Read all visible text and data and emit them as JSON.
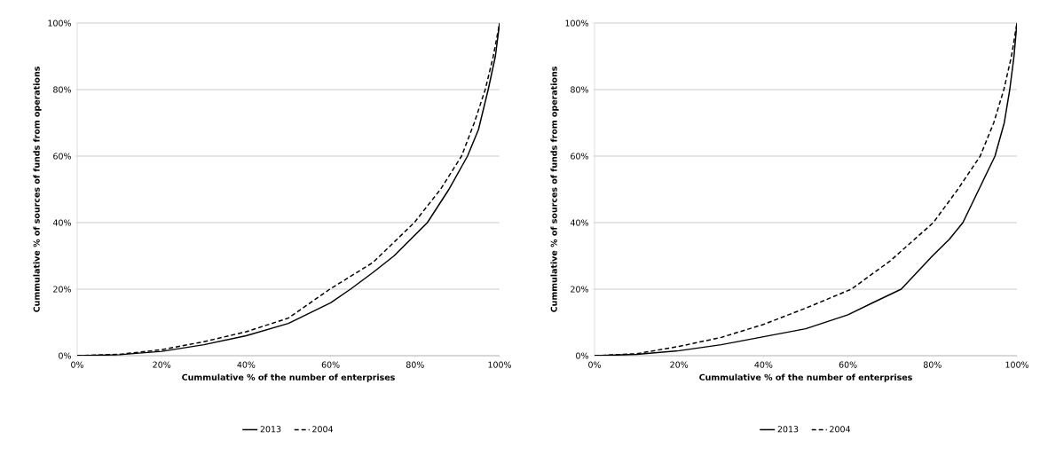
{
  "chart_data": [
    {
      "type": "line",
      "xlabel": "Cummulative % of the number of enterprises",
      "ylabel": "Cummulative % of sources of funds from operations",
      "xlim": [
        0,
        100
      ],
      "ylim": [
        0,
        100
      ],
      "xticks": [
        {
          "value": 0,
          "label": "0%"
        },
        {
          "value": 20,
          "label": "20%"
        },
        {
          "value": 40,
          "label": "40%"
        },
        {
          "value": 60,
          "label": "60%"
        },
        {
          "value": 80,
          "label": "80%"
        },
        {
          "value": 100,
          "label": "100%"
        }
      ],
      "yticks": [
        {
          "value": 0,
          "label": "0%"
        },
        {
          "value": 20,
          "label": "20%"
        },
        {
          "value": 40,
          "label": "40%"
        },
        {
          "value": 60,
          "label": "60%"
        },
        {
          "value": 80,
          "label": "80%"
        },
        {
          "value": 100,
          "label": "100%"
        }
      ],
      "grid": "y",
      "legend": "bottom",
      "series": [
        {
          "name": "2013",
          "color": "#000000",
          "line_style": "solid",
          "x": [
            0,
            10,
            20,
            30,
            40,
            50,
            60,
            64.7,
            70,
            75,
            82.9,
            88,
            92.4,
            95,
            97.3,
            99,
            100
          ],
          "values": [
            0,
            0.3,
            1.3,
            3.3,
            6,
            9.7,
            15.9,
            20,
            25,
            30,
            40,
            50,
            60,
            68,
            80,
            90,
            100
          ]
        },
        {
          "name": "2004",
          "color": "#000000",
          "line_style": "dashed",
          "x": [
            0,
            10,
            20,
            30,
            40,
            50,
            59.8,
            70,
            79.8,
            86,
            91,
            94,
            96.6,
            98.5,
            100
          ],
          "values": [
            0,
            0.4,
            1.8,
            4.2,
            7.2,
            11.3,
            20,
            28,
            40,
            50,
            60,
            70,
            80,
            90,
            100
          ]
        }
      ]
    },
    {
      "type": "line",
      "xlabel": "Cummulative % of the number of enterprises",
      "ylabel": "Cummulative % of sources of funds from operations",
      "xlim": [
        0,
        100
      ],
      "ylim": [
        0,
        100
      ],
      "xticks": [
        {
          "value": 0,
          "label": "0%"
        },
        {
          "value": 20,
          "label": "20%"
        },
        {
          "value": 40,
          "label": "40%"
        },
        {
          "value": 60,
          "label": "60%"
        },
        {
          "value": 80,
          "label": "80%"
        },
        {
          "value": 100,
          "label": "100%"
        }
      ],
      "yticks": [
        {
          "value": 0,
          "label": "0%"
        },
        {
          "value": 20,
          "label": "20%"
        },
        {
          "value": 40,
          "label": "40%"
        },
        {
          "value": 60,
          "label": "60%"
        },
        {
          "value": 80,
          "label": "80%"
        },
        {
          "value": 100,
          "label": "100%"
        }
      ],
      "grid": "y",
      "legend": "bottom",
      "series": [
        {
          "name": "2013",
          "color": "#000000",
          "line_style": "solid",
          "x": [
            0,
            10,
            20,
            30,
            40,
            50,
            60,
            66,
            72.6,
            80,
            84,
            87.2,
            91,
            94.8,
            97,
            98.3,
            99.3,
            100
          ],
          "values": [
            0,
            0.4,
            1.5,
            3.3,
            5.7,
            8.1,
            12.3,
            16,
            20,
            30,
            35,
            40,
            50,
            60,
            70,
            80,
            90,
            100
          ]
        },
        {
          "name": "2004",
          "color": "#000000",
          "line_style": "dashed",
          "x": [
            0,
            10,
            20,
            30,
            40,
            50,
            60.8,
            70,
            80.2,
            86,
            91.3,
            94.5,
            96.9,
            98.7,
            100
          ],
          "values": [
            0,
            0.6,
            2.8,
            5.5,
            9.4,
            14.3,
            20,
            28.5,
            40,
            50,
            60,
            70,
            80,
            90,
            100
          ]
        }
      ]
    }
  ]
}
